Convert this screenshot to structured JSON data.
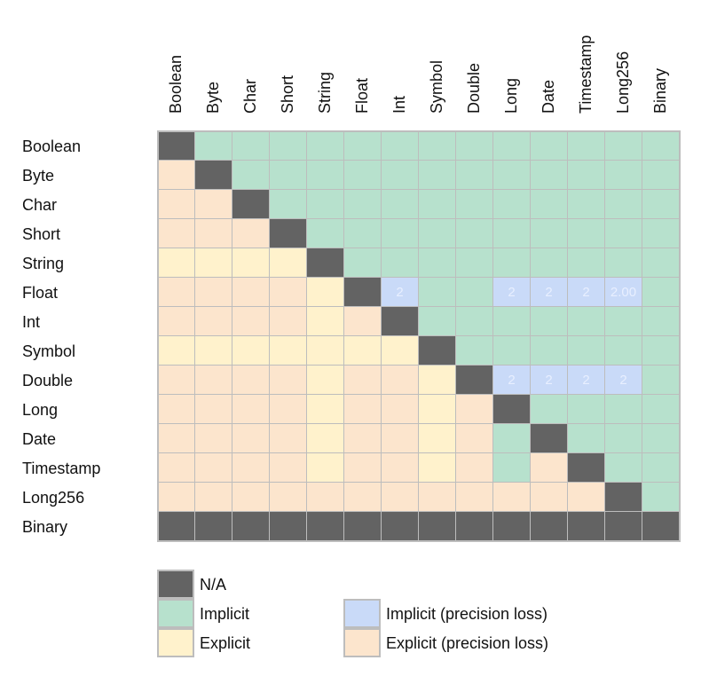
{
  "matrix": {
    "types": [
      "Boolean",
      "Byte",
      "Char",
      "Short",
      "String",
      "Float",
      "Int",
      "Symbol",
      "Double",
      "Long",
      "Date",
      "Timestamp",
      "Long256",
      "Binary"
    ],
    "codes": [
      "NIIIIIIIIIIIII",
      "ENIIIIIIIIIIII",
      "EENIIIIIIIIIII",
      "EEENIIIIIIIIII",
      "XXXXNIIIIIIIII",
      "EEEEXNPIIPPPPI",
      "EEEEXENIIIIIII",
      "XXXXXXXNIIIIII",
      "EEEEXEEXNPPPPI",
      "EEEEXEEXENIIII",
      "EEEEXEEXEINIII",
      "EEEEXEEXEIENII",
      "EEEEEEEEEEEENI",
      "NNNNNNNNNNNNNN"
    ],
    "cell_text": [
      {
        "row": 5,
        "col": 6,
        "text": "2"
      },
      {
        "row": 5,
        "col": 9,
        "text": "2"
      },
      {
        "row": 5,
        "col": 10,
        "text": "2"
      },
      {
        "row": 5,
        "col": 11,
        "text": "2"
      },
      {
        "row": 5,
        "col": 12,
        "text": "2.00"
      },
      {
        "row": 8,
        "col": 9,
        "text": "2"
      },
      {
        "row": 8,
        "col": 10,
        "text": "2"
      },
      {
        "row": 8,
        "col": 11,
        "text": "2"
      },
      {
        "row": 8,
        "col": 12,
        "text": "2"
      }
    ]
  },
  "categories": {
    "N": {
      "label": "N/A",
      "color": "#636363"
    },
    "I": {
      "label": "Implicit",
      "color": "#b7e1cd"
    },
    "X": {
      "label": "Explicit",
      "color": "#fff2cc"
    },
    "P": {
      "label": "Implicit (precision loss)",
      "color": "#c9daf8"
    },
    "E": {
      "label": "Explicit (precision loss)",
      "color": "#fce5cd"
    }
  },
  "legend": [
    {
      "code": "N",
      "label": "N/A"
    },
    {
      "code": "I",
      "label": "Implicit"
    },
    {
      "code": "X",
      "label": "Explicit"
    },
    {
      "code": "P",
      "label": "Implicit (precision loss)"
    },
    {
      "code": "E",
      "label": "Explicit (precision loss)"
    }
  ]
}
